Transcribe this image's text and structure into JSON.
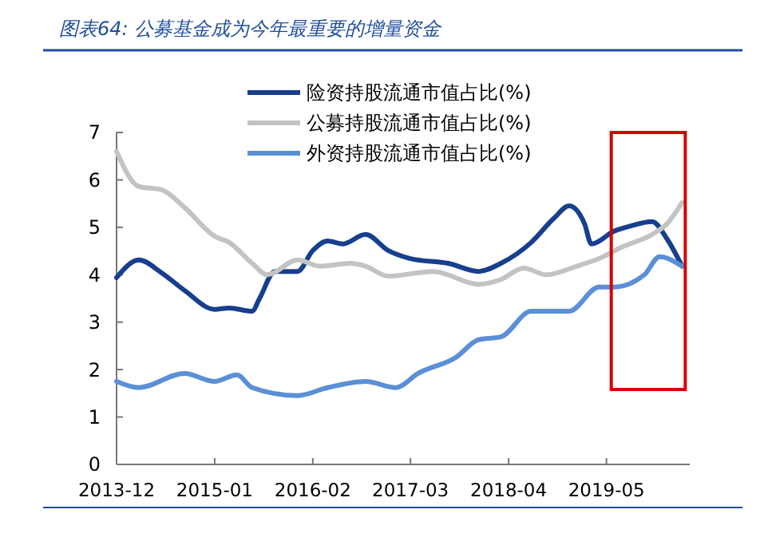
{
  "chart_data": {
    "type": "line",
    "title": "图表64: 公募基金成为今年最重要的增量资金",
    "series": [
      {
        "name": "险资持股流通市值占比(%)",
        "color": "#173f8e",
        "x": [
          "2013-12",
          "2014-03",
          "2014-06",
          "2014-09",
          "2015-01",
          "2015-03",
          "2015-06",
          "2015-07",
          "2015-09",
          "2015-12",
          "2016-02",
          "2016-04",
          "2016-06",
          "2016-09",
          "2016-12",
          "2017-03",
          "2017-08",
          "2017-12",
          "2018-03",
          "2018-07",
          "2018-10",
          "2018-12",
          "2019-02",
          "2019-03",
          "2019-06",
          "2019-08",
          "2019-11",
          "2020-01",
          "2020-03"
        ],
        "values": [
          3.94,
          4.31,
          4.04,
          3.67,
          3.27,
          3.3,
          3.23,
          3.5,
          4.07,
          4.07,
          4.51,
          4.71,
          4.65,
          4.85,
          4.51,
          4.34,
          4.24,
          4.07,
          4.24,
          4.68,
          5.19,
          5.45,
          5.08,
          4.65,
          4.92,
          5.02,
          5.12,
          4.75,
          4.18
        ]
      },
      {
        "name": "公募持股流通市值占比(%)",
        "color": "#c3c3c3",
        "x": [
          "2013-12",
          "2014-03",
          "2014-06",
          "2014-09",
          "2015-01",
          "2015-03",
          "2015-06",
          "2015-08",
          "2015-12",
          "2016-03",
          "2016-07",
          "2016-09",
          "2016-12",
          "2017-06",
          "2017-12",
          "2018-03",
          "2018-06",
          "2018-09",
          "2019-01",
          "2019-04",
          "2019-07",
          "2019-11",
          "2020-01",
          "2020-03"
        ],
        "values": [
          6.6,
          5.86,
          5.79,
          5.42,
          4.81,
          4.68,
          4.24,
          4.0,
          4.31,
          4.18,
          4.24,
          4.18,
          3.97,
          4.07,
          3.8,
          3.9,
          4.14,
          4.0,
          4.18,
          4.34,
          4.58,
          4.85,
          5.08,
          5.52
        ]
      },
      {
        "name": "外资持股流通市值占比(%)",
        "color": "#5b8fd6",
        "x": [
          "2013-12",
          "2014-03",
          "2014-09",
          "2015-01",
          "2015-04",
          "2015-06",
          "2015-12",
          "2016-04",
          "2016-09",
          "2017-01",
          "2017-04",
          "2017-09",
          "2017-12",
          "2018-03",
          "2018-07",
          "2018-12",
          "2019-04",
          "2019-06",
          "2019-10",
          "2019-12",
          "2020-03"
        ],
        "values": [
          1.75,
          1.62,
          1.92,
          1.75,
          1.89,
          1.62,
          1.45,
          1.62,
          1.75,
          1.62,
          1.92,
          2.26,
          2.63,
          2.69,
          3.23,
          3.23,
          3.74,
          3.74,
          4.0,
          4.38,
          4.18
        ]
      }
    ],
    "xlim": [
      "2013-12",
      "2020-04"
    ],
    "xticks": [
      "2013-12",
      "2015-01",
      "2016-02",
      "2017-03",
      "2018-04",
      "2019-05"
    ],
    "ylim": [
      0,
      7
    ],
    "yticks": [
      0,
      1,
      2,
      3,
      4,
      5,
      6,
      7
    ],
    "grid": false,
    "legend": "top",
    "marker": "none",
    "line_style": "solid"
  }
}
